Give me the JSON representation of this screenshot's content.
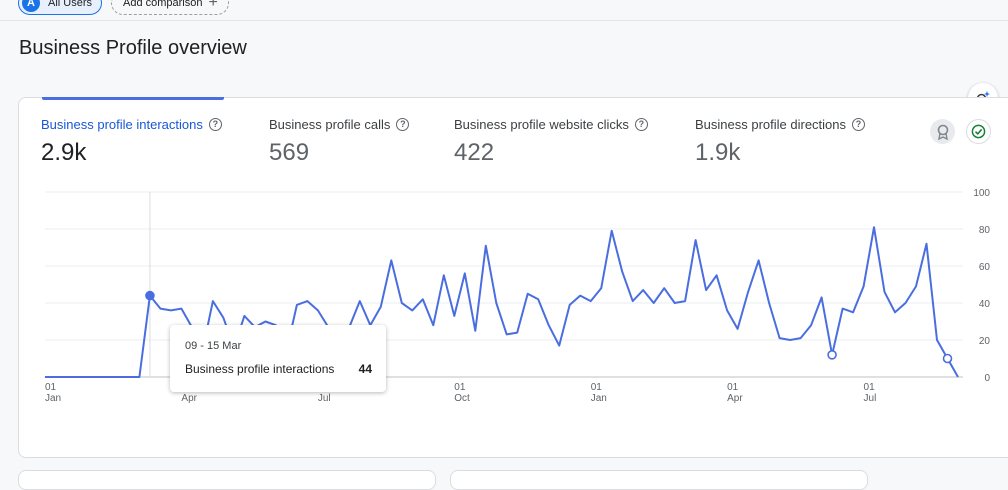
{
  "segment": {
    "letter": "A",
    "label": "All Users"
  },
  "add_comparison": {
    "label": "Add comparison",
    "icon": "plus-icon"
  },
  "page_title": "Business Profile overview",
  "metrics": [
    {
      "label": "Business profile interactions",
      "value": "2.9k",
      "active": true
    },
    {
      "label": "Business profile calls",
      "value": "569",
      "active": false
    },
    {
      "label": "Business profile website clicks",
      "value": "422",
      "active": false
    },
    {
      "label": "Business profile directions",
      "value": "1.9k",
      "active": false
    }
  ],
  "help_glyph": "?",
  "icons": {
    "insights": "insights-search-icon",
    "badge": "ribbon-badge-icon",
    "status": "check-circle-icon"
  },
  "tooltip": {
    "date": "09 - 15 Mar",
    "name": "Business profile interactions",
    "value": "44"
  },
  "colors": {
    "series": "#4a6ee0",
    "accent": "#1a73e8",
    "status": "#188038"
  },
  "chart_data": {
    "type": "line",
    "ylim": [
      0,
      100
    ],
    "y_ticks": [
      0,
      20,
      40,
      60,
      80,
      100
    ],
    "x_ticks": [
      {
        "day": "01",
        "month": "Jan",
        "index": 0
      },
      {
        "day": "",
        "month": "Apr",
        "index": 13
      },
      {
        "day": "",
        "month": "Jul",
        "index": 26
      },
      {
        "day": "01",
        "month": "Oct",
        "index": 39
      },
      {
        "day": "01",
        "month": "Jan",
        "index": 52
      },
      {
        "day": "01",
        "month": "Apr",
        "index": 65
      },
      {
        "day": "01",
        "month": "Jul",
        "index": 78
      }
    ],
    "series": [
      {
        "values": [
          0,
          0,
          0,
          0,
          0,
          0,
          0,
          0,
          0,
          0,
          44,
          37,
          36,
          37,
          27,
          14,
          41,
          32,
          16,
          33,
          27,
          30,
          28,
          14,
          39,
          41,
          36,
          27,
          10,
          27,
          41,
          28,
          38,
          63,
          40,
          36,
          42,
          28,
          55,
          33,
          56,
          25,
          71,
          40,
          23,
          24,
          45,
          42,
          28,
          17,
          39,
          44,
          41,
          48,
          79,
          57,
          41,
          47,
          40,
          48,
          40,
          41,
          74,
          47,
          55,
          36,
          26,
          46,
          63,
          40,
          21,
          20,
          21,
          28,
          43,
          12,
          37,
          35,
          49,
          81,
          46,
          35,
          40,
          49,
          72,
          20,
          10,
          0
        ],
        "markers": [
          10,
          75,
          86
        ]
      }
    ],
    "hover_index": 10
  }
}
